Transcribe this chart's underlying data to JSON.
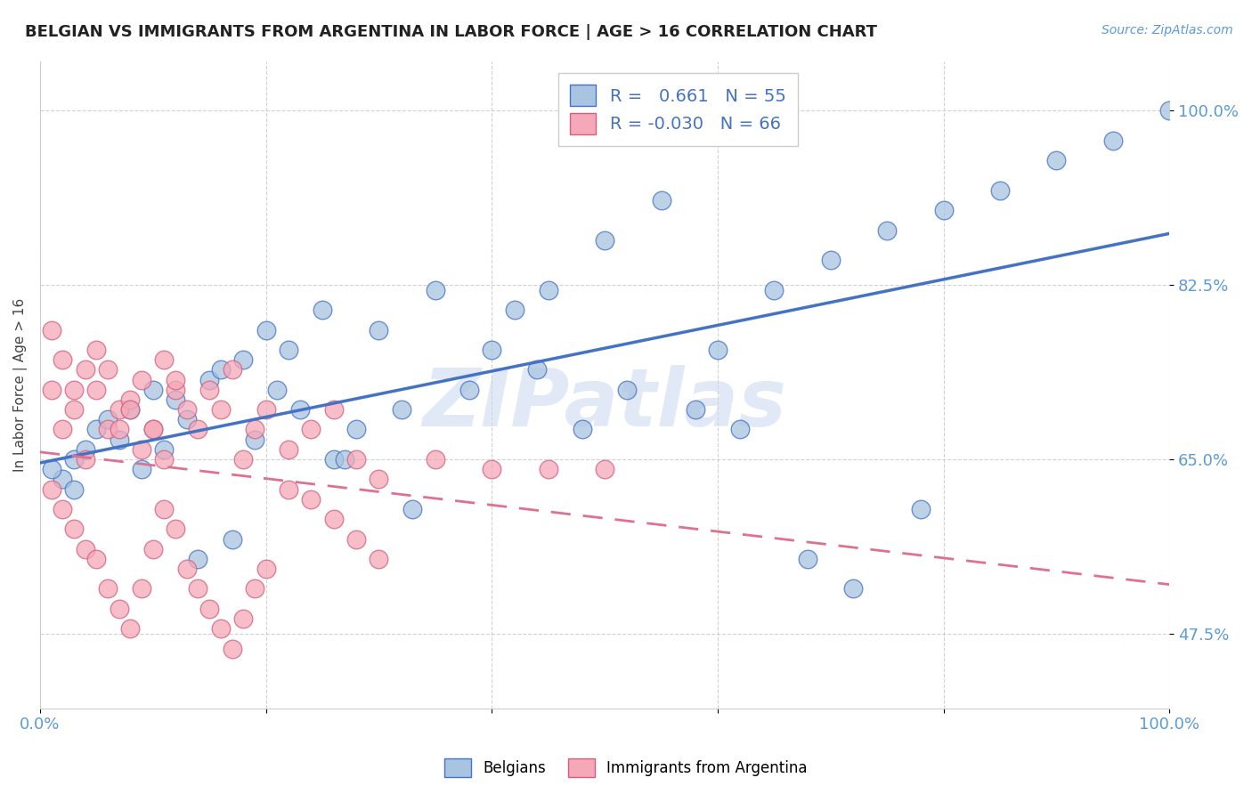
{
  "title": "BELGIAN VS IMMIGRANTS FROM ARGENTINA IN LABOR FORCE | AGE > 16 CORRELATION CHART",
  "source": "Source: ZipAtlas.com",
  "ylabel": "In Labor Force | Age > 16",
  "xlim": [
    0,
    1.0
  ],
  "ylim": [
    0.4,
    1.05
  ],
  "ytick_positions": [
    0.475,
    0.65,
    0.825,
    1.0
  ],
  "ytick_labels": [
    "47.5%",
    "65.0%",
    "82.5%",
    "100.0%"
  ],
  "belgian_color": "#a8c4e0",
  "argentina_color": "#f5a8b8",
  "belgian_edge_color": "#4472C4",
  "argentina_edge_color": "#d06080",
  "belgian_R": 0.661,
  "belgian_N": 55,
  "argentina_R": -0.03,
  "argentina_N": 66,
  "blue_trend_color": "#4472C4",
  "pink_trend_color": "#E07090",
  "watermark": "ZIPatlas",
  "legend_label_belgian": "Belgians",
  "legend_label_argentina": "Immigrants from Argentina",
  "belgian_x": [
    0.02,
    0.03,
    0.01,
    0.05,
    0.08,
    0.1,
    0.07,
    0.12,
    0.15,
    0.18,
    0.2,
    0.22,
    0.25,
    0.3,
    0.35,
    0.4,
    0.42,
    0.45,
    0.5,
    0.55,
    0.6,
    0.65,
    0.7,
    0.75,
    0.8,
    0.85,
    0.9,
    0.95,
    1.0,
    0.03,
    0.04,
    0.06,
    0.09,
    0.11,
    0.13,
    0.16,
    0.19,
    0.21,
    0.23,
    0.26,
    0.28,
    0.32,
    0.38,
    0.44,
    0.48,
    0.52,
    0.58,
    0.62,
    0.68,
    0.72,
    0.78,
    0.17,
    0.14,
    0.27,
    0.33
  ],
  "belgian_y": [
    0.63,
    0.65,
    0.64,
    0.68,
    0.7,
    0.72,
    0.67,
    0.71,
    0.73,
    0.75,
    0.78,
    0.76,
    0.8,
    0.78,
    0.82,
    0.76,
    0.8,
    0.82,
    0.87,
    0.91,
    0.76,
    0.82,
    0.85,
    0.88,
    0.9,
    0.92,
    0.95,
    0.97,
    1.0,
    0.62,
    0.66,
    0.69,
    0.64,
    0.66,
    0.69,
    0.74,
    0.67,
    0.72,
    0.7,
    0.65,
    0.68,
    0.7,
    0.72,
    0.74,
    0.68,
    0.72,
    0.7,
    0.68,
    0.55,
    0.52,
    0.6,
    0.57,
    0.55,
    0.65,
    0.6
  ],
  "argentina_x": [
    0.01,
    0.02,
    0.01,
    0.03,
    0.02,
    0.04,
    0.03,
    0.05,
    0.04,
    0.06,
    0.05,
    0.07,
    0.06,
    0.08,
    0.07,
    0.09,
    0.08,
    0.1,
    0.09,
    0.11,
    0.1,
    0.12,
    0.11,
    0.13,
    0.12,
    0.14,
    0.15,
    0.16,
    0.17,
    0.18,
    0.19,
    0.2,
    0.22,
    0.24,
    0.26,
    0.28,
    0.3,
    0.35,
    0.4,
    0.45,
    0.5,
    0.01,
    0.02,
    0.03,
    0.04,
    0.05,
    0.06,
    0.07,
    0.08,
    0.09,
    0.1,
    0.11,
    0.12,
    0.13,
    0.14,
    0.15,
    0.16,
    0.17,
    0.18,
    0.19,
    0.2,
    0.22,
    0.24,
    0.26,
    0.28,
    0.3
  ],
  "argentina_y": [
    0.72,
    0.75,
    0.78,
    0.7,
    0.68,
    0.74,
    0.72,
    0.76,
    0.65,
    0.68,
    0.72,
    0.7,
    0.74,
    0.71,
    0.68,
    0.66,
    0.7,
    0.68,
    0.73,
    0.75,
    0.68,
    0.72,
    0.65,
    0.7,
    0.73,
    0.68,
    0.72,
    0.7,
    0.74,
    0.65,
    0.68,
    0.7,
    0.66,
    0.68,
    0.7,
    0.65,
    0.63,
    0.65,
    0.64,
    0.64,
    0.64,
    0.62,
    0.6,
    0.58,
    0.56,
    0.55,
    0.52,
    0.5,
    0.48,
    0.52,
    0.56,
    0.6,
    0.58,
    0.54,
    0.52,
    0.5,
    0.48,
    0.46,
    0.49,
    0.52,
    0.54,
    0.62,
    0.61,
    0.59,
    0.57,
    0.55
  ]
}
